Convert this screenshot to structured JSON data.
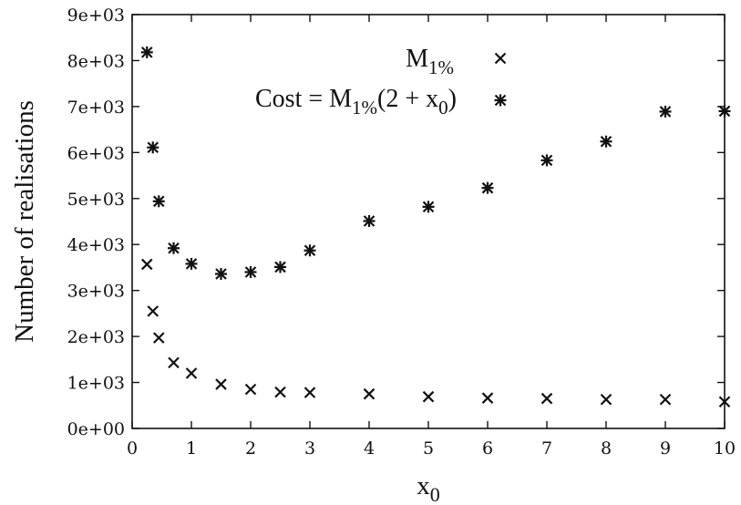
{
  "chart_data": {
    "type": "scatter",
    "title": "",
    "xlabel_base": "x",
    "xlabel_sub": "0",
    "ylabel": "Number of realisations",
    "xlim": [
      0,
      10
    ],
    "ylim": [
      0,
      9000
    ],
    "xticks": [
      0,
      1,
      2,
      3,
      4,
      5,
      6,
      7,
      8,
      9,
      10
    ],
    "xtick_labels": [
      "0",
      "1",
      "2",
      "3",
      "4",
      "5",
      "6",
      "7",
      "8",
      "9",
      "10"
    ],
    "yticks": [
      0,
      1000,
      2000,
      3000,
      4000,
      5000,
      6000,
      7000,
      8000,
      9000
    ],
    "ytick_labels": [
      "0e+00",
      "1e+03",
      "2e+03",
      "3e+03",
      "4e+03",
      "5e+03",
      "6e+03",
      "7e+03",
      "8e+03",
      "9e+03"
    ],
    "grid": false,
    "legend_position": "top-right",
    "series": [
      {
        "name_parts": {
          "base": "M",
          "sub": "1%",
          "post": ""
        },
        "marker": "x",
        "points": [
          [
            0.25,
            3570
          ],
          [
            0.35,
            2550
          ],
          [
            0.45,
            1970
          ],
          [
            0.7,
            1430
          ],
          [
            1.0,
            1200
          ],
          [
            1.5,
            960
          ],
          [
            2.0,
            850
          ],
          [
            2.5,
            790
          ],
          [
            3.0,
            780
          ],
          [
            4.0,
            750
          ],
          [
            5.0,
            690
          ],
          [
            6.0,
            660
          ],
          [
            7.0,
            650
          ],
          [
            8.0,
            630
          ],
          [
            9.0,
            630
          ],
          [
            10.0,
            580
          ]
        ]
      },
      {
        "name_parts": {
          "pre": "Cost = M",
          "sub": "1%",
          "post_a": "(2 + x",
          "post_sub": "0",
          "post_b": ")"
        },
        "marker": "asterisk",
        "points": [
          [
            0.25,
            8180
          ],
          [
            0.35,
            6110
          ],
          [
            0.45,
            4940
          ],
          [
            0.7,
            3920
          ],
          [
            1.0,
            3580
          ],
          [
            1.5,
            3360
          ],
          [
            2.0,
            3400
          ],
          [
            2.5,
            3510
          ],
          [
            3.0,
            3870
          ],
          [
            4.0,
            4510
          ],
          [
            5.0,
            4820
          ],
          [
            6.0,
            5230
          ],
          [
            7.0,
            5830
          ],
          [
            8.0,
            6240
          ],
          [
            9.0,
            6890
          ],
          [
            10.0,
            6900
          ]
        ]
      }
    ]
  }
}
